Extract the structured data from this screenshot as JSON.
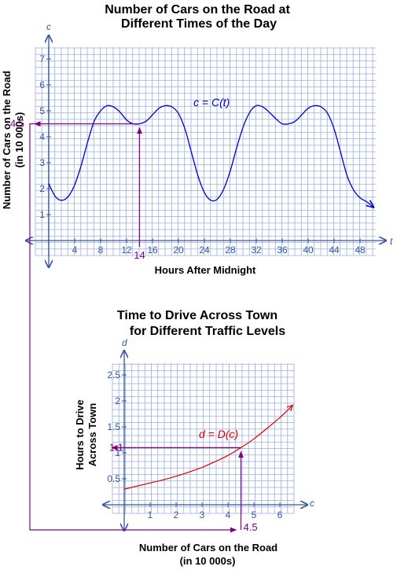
{
  "colors": {
    "grid": "#99aedd",
    "axis": "#3355aa",
    "curve1": "#0000cc",
    "curve2": "#dd0000",
    "guide": "#800080"
  },
  "chart_data": [
    {
      "type": "line",
      "title_lines": [
        "Number of Cars on the Road at",
        "Different Times of the Day"
      ],
      "xlabel": "Hours After Midnight",
      "ylabel_lines": [
        "Number of Cars on the Road",
        "(in 10 000s)"
      ],
      "x_axis_name": "t",
      "y_axis_name": "c",
      "xlim": [
        -4,
        50
      ],
      "ylim": [
        -1,
        8
      ],
      "grid": true,
      "x_tick_labels": [
        "4",
        "8",
        "12",
        "16",
        "20",
        "24",
        "28",
        "32",
        "36",
        "40",
        "44",
        "48"
      ],
      "y_tick_labels": [
        "1",
        "2",
        "3",
        "4",
        "5",
        "6",
        "7"
      ],
      "curve_label": "c = C(t)",
      "series": [
        {
          "name": "c = C(t)",
          "x": [
            0,
            1,
            2,
            3,
            4,
            5,
            6,
            7,
            8,
            9,
            10,
            11,
            12,
            13,
            14,
            15,
            16,
            17,
            18,
            19,
            20,
            21,
            22,
            23,
            24,
            25,
            26,
            27,
            28,
            29,
            30,
            31,
            32,
            33,
            34,
            35,
            36,
            37,
            38,
            39,
            40,
            41,
            42,
            43,
            44,
            45,
            46,
            47,
            48,
            49,
            50
          ],
          "y": [
            2.2,
            1.7,
            1.55,
            1.7,
            2.15,
            2.9,
            3.8,
            4.6,
            5.0,
            5.2,
            5.15,
            4.95,
            4.65,
            4.5,
            4.5,
            4.6,
            4.85,
            5.1,
            5.2,
            5.15,
            4.9,
            4.3,
            3.4,
            2.5,
            1.85,
            1.55,
            1.6,
            2.0,
            2.7,
            3.6,
            4.4,
            4.95,
            5.2,
            5.15,
            4.95,
            4.7,
            4.5,
            4.5,
            4.6,
            4.85,
            5.1,
            5.2,
            5.15,
            4.9,
            4.3,
            3.4,
            2.5,
            1.95,
            1.65,
            1.5,
            1.3
          ]
        }
      ],
      "marked_point": {
        "x": 14,
        "y": 4.5,
        "x_label": "14",
        "y_label": "4.5"
      }
    },
    {
      "type": "line",
      "title_lines": [
        "Time to Drive Across Town",
        "for Different Traffic Levels"
      ],
      "xlabel_lines": [
        "Number of Cars on the Road",
        "(in 10 000s)"
      ],
      "ylabel_lines": [
        "Hours to Drive",
        "Across Town"
      ],
      "x_axis_name": "c",
      "y_axis_name": "d",
      "xlim": [
        -0.5,
        7
      ],
      "ylim": [
        -0.2,
        2.8
      ],
      "grid": true,
      "x_tick_labels": [
        "1",
        "2",
        "3",
        "4",
        "5",
        "6"
      ],
      "y_tick_labels": [
        "0.5",
        "1",
        "1.5",
        "2",
        "2.5"
      ],
      "y_tick_values": [
        0.5,
        1,
        1.5,
        2,
        2.5
      ],
      "curve_label": "d = D(c)",
      "series": [
        {
          "name": "d = D(c)",
          "x": [
            0,
            0.5,
            1,
            1.5,
            2,
            2.5,
            3,
            3.5,
            4,
            4.5,
            5,
            5.5,
            6,
            6.5
          ],
          "y": [
            0.3,
            0.36,
            0.42,
            0.48,
            0.55,
            0.63,
            0.72,
            0.83,
            0.95,
            1.1,
            1.27,
            1.47,
            1.68,
            1.92
          ]
        }
      ],
      "marked_point": {
        "x": 4.5,
        "y": 1.1,
        "x_label": "4.5",
        "y_label": "1.1"
      }
    }
  ]
}
